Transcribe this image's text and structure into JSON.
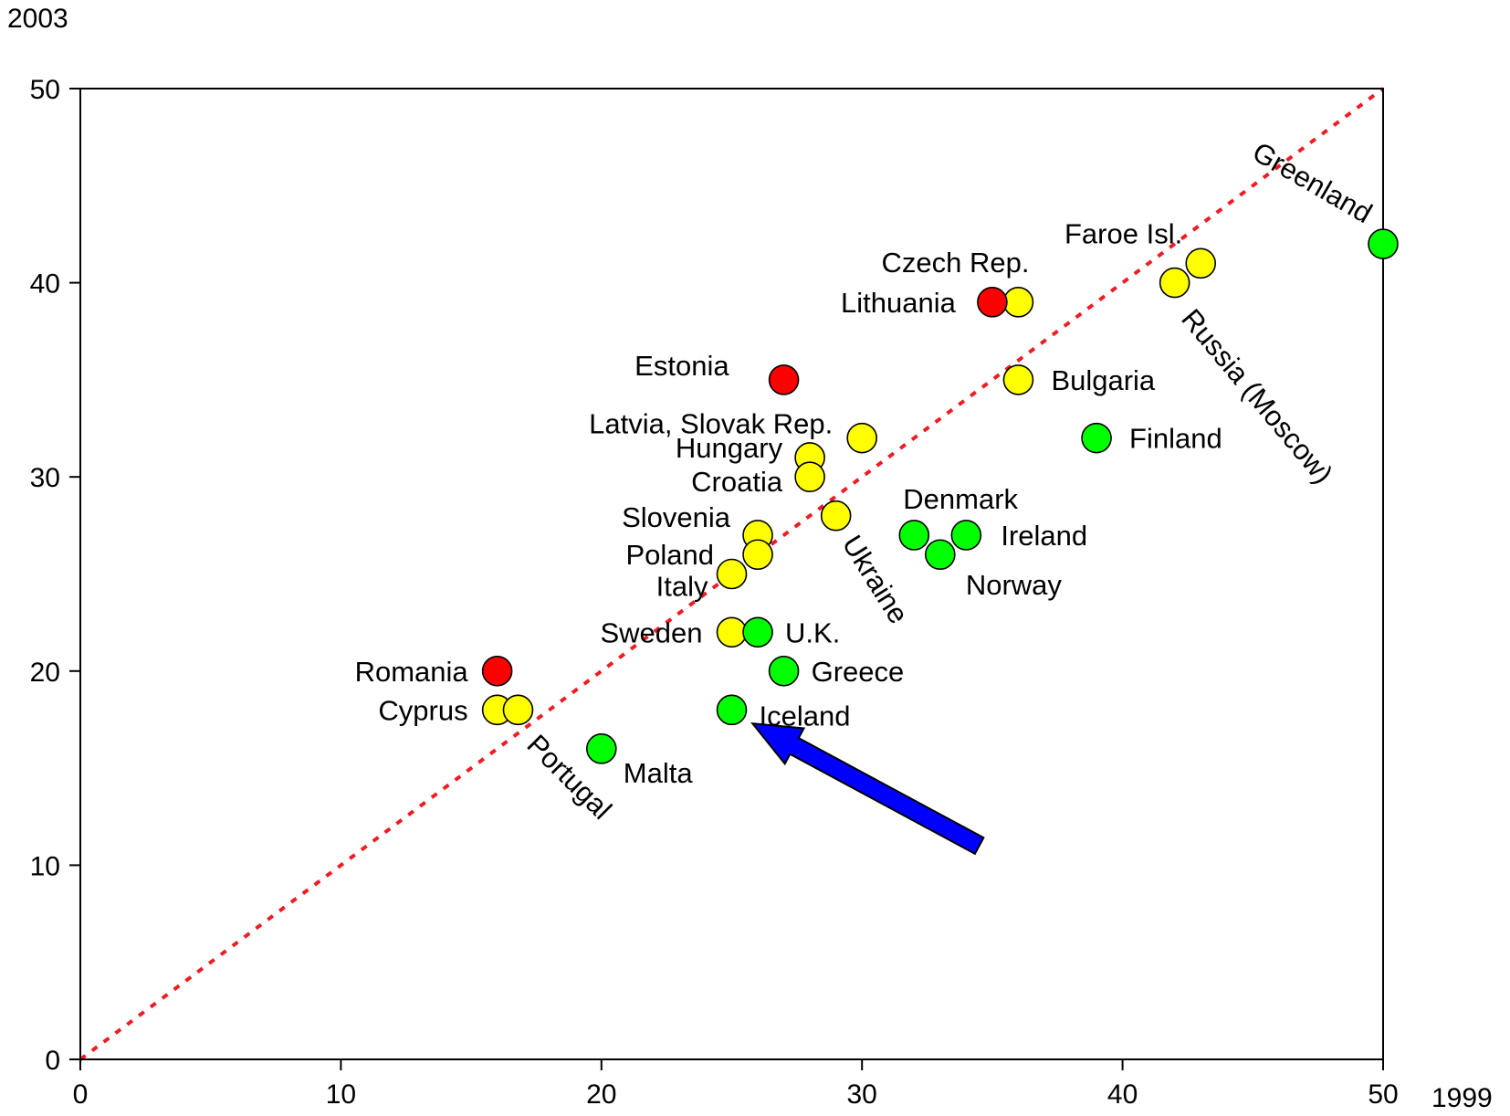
{
  "chart_data": {
    "type": "scatter",
    "xlabel": "1999",
    "ylabel": "2003",
    "xlim": [
      0,
      50
    ],
    "ylim": [
      0,
      50
    ],
    "xticks": [
      0,
      10,
      20,
      30,
      40,
      50
    ],
    "yticks": [
      0,
      10,
      20,
      30,
      40,
      50
    ],
    "grid": false,
    "legend": "none",
    "reference_line": {
      "from": [
        0,
        0
      ],
      "to": [
        50,
        50
      ],
      "style": "dotted",
      "color": "#ee1c24"
    },
    "colors": {
      "red": "#ff0000",
      "yellow": "#ffff00",
      "green": "#00ff00",
      "arrow": "#0000ff",
      "outline": "#000000"
    },
    "points": [
      {
        "label": "Greenland",
        "x": 50,
        "y": 42,
        "color": "green"
      },
      {
        "label": "Faroe Isl.",
        "x": 43,
        "y": 41,
        "color": "yellow"
      },
      {
        "label": "Russia (Moscow)",
        "x": 42,
        "y": 40,
        "color": "yellow"
      },
      {
        "label": "Czech Rep.",
        "x": 36,
        "y": 39,
        "color": "yellow"
      },
      {
        "label": "Lithuania",
        "x": 35,
        "y": 39,
        "color": "red"
      },
      {
        "label": "Bulgaria",
        "x": 36,
        "y": 35,
        "color": "yellow"
      },
      {
        "label": "Finland",
        "x": 39,
        "y": 32,
        "color": "green"
      },
      {
        "label": "Estonia",
        "x": 27,
        "y": 35,
        "color": "red"
      },
      {
        "label": "Latvia, Slovak Rep.",
        "x": 30,
        "y": 32,
        "color": "yellow"
      },
      {
        "label": "Hungary",
        "x": 28,
        "y": 31,
        "color": "yellow"
      },
      {
        "label": "Croatia",
        "x": 28,
        "y": 30,
        "color": "yellow"
      },
      {
        "label": "Ukraine",
        "x": 29,
        "y": 28,
        "color": "yellow"
      },
      {
        "label": "Denmark",
        "x": 32,
        "y": 27,
        "color": "green"
      },
      {
        "label": "Ireland",
        "x": 34,
        "y": 27,
        "color": "green"
      },
      {
        "label": "Norway",
        "x": 33,
        "y": 26,
        "color": "green"
      },
      {
        "label": "Slovenia",
        "x": 26,
        "y": 27,
        "color": "yellow"
      },
      {
        "label": "Poland",
        "x": 26,
        "y": 26,
        "color": "yellow"
      },
      {
        "label": "Italy",
        "x": 25,
        "y": 25,
        "color": "yellow"
      },
      {
        "label": "Sweden",
        "x": 25,
        "y": 22,
        "color": "yellow"
      },
      {
        "label": "U.K.",
        "x": 26,
        "y": 22,
        "color": "green"
      },
      {
        "label": "Greece",
        "x": 27,
        "y": 20,
        "color": "green"
      },
      {
        "label": "Iceland",
        "x": 25,
        "y": 18,
        "color": "green"
      },
      {
        "label": "Romania",
        "x": 16,
        "y": 20,
        "color": "red"
      },
      {
        "label": "Cyprus",
        "x": 16,
        "y": 18,
        "color": "yellow"
      },
      {
        "label": "Portugal",
        "x": 16.8,
        "y": 18,
        "color": "yellow"
      },
      {
        "label": "Malta",
        "x": 20,
        "y": 16,
        "color": "green"
      }
    ],
    "annotations": [
      {
        "type": "arrow",
        "color": "arrow",
        "points_to": "Iceland",
        "from": [
          34.5,
          11
        ],
        "to": [
          25.8,
          17.3
        ]
      }
    ]
  }
}
